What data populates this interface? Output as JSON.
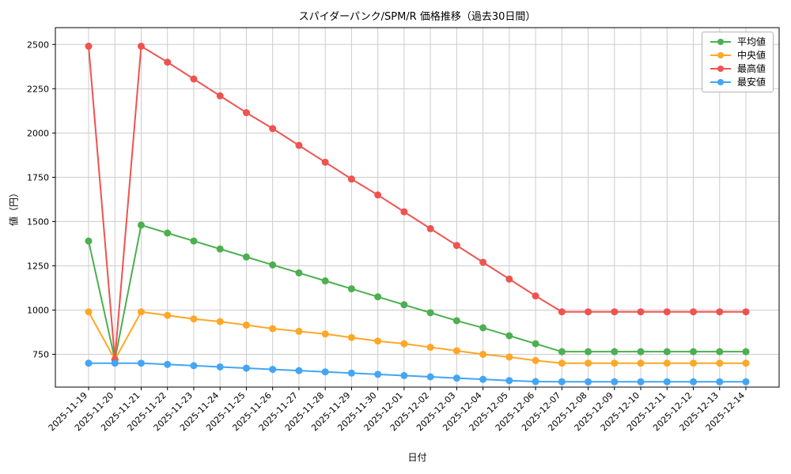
{
  "chart_data": {
    "type": "line",
    "title": "スパイダーパンク/SPM/R 価格推移（過去30日間）",
    "xlabel": "日付",
    "ylabel": "値（円）",
    "x": [
      "2025-11-19",
      "2025-11-20",
      "2025-11-21",
      "2025-11-22",
      "2025-11-23",
      "2025-11-24",
      "2025-11-25",
      "2025-11-26",
      "2025-11-27",
      "2025-11-28",
      "2025-11-29",
      "2025-11-30",
      "2025-12-01",
      "2025-12-02",
      "2025-12-03",
      "2025-12-04",
      "2025-12-05",
      "2025-12-06",
      "2025-12-07",
      "2025-12-08",
      "2025-12-09",
      "2025-12-10",
      "2025-12-11",
      "2025-12-12",
      "2025-12-13",
      "2025-12-14"
    ],
    "yticks": [
      750,
      1000,
      1250,
      1500,
      1750,
      2000,
      2250,
      2500
    ],
    "ylim": [
      565,
      2595
    ],
    "grid": true,
    "legend_position": "upper right",
    "series": [
      {
        "key": "average",
        "name": "平均値",
        "color": "#4caf50",
        "values": [
          1390,
          720,
          1480,
          1435,
          1390,
          1345,
          1300,
          1255,
          1210,
          1165,
          1120,
          1075,
          1030,
          985,
          940,
          900,
          855,
          810,
          765,
          765,
          765,
          765,
          765,
          765,
          765,
          765
        ]
      },
      {
        "key": "median",
        "name": "中央値",
        "color": "#ffa726",
        "values": [
          990,
          720,
          990,
          970,
          950,
          935,
          915,
          895,
          880,
          865,
          845,
          825,
          810,
          790,
          770,
          750,
          735,
          715,
          700,
          700,
          700,
          700,
          700,
          700,
          700,
          700
        ]
      },
      {
        "key": "max",
        "name": "最高値",
        "color": "#ef5350",
        "values": [
          2490,
          720,
          2490,
          2400,
          2305,
          2210,
          2115,
          2025,
          1930,
          1835,
          1740,
          1650,
          1555,
          1460,
          1365,
          1270,
          1175,
          1080,
          990,
          990,
          990,
          990,
          990,
          990,
          990,
          990
        ]
      },
      {
        "key": "min",
        "name": "最安値",
        "color": "#42a5f5",
        "values": [
          700,
          700,
          700,
          693,
          686,
          679,
          672,
          665,
          658,
          651,
          644,
          637,
          630,
          623,
          616,
          609,
          602,
          596,
          595,
          595,
          595,
          595,
          595,
          595,
          595,
          595
        ]
      }
    ]
  }
}
